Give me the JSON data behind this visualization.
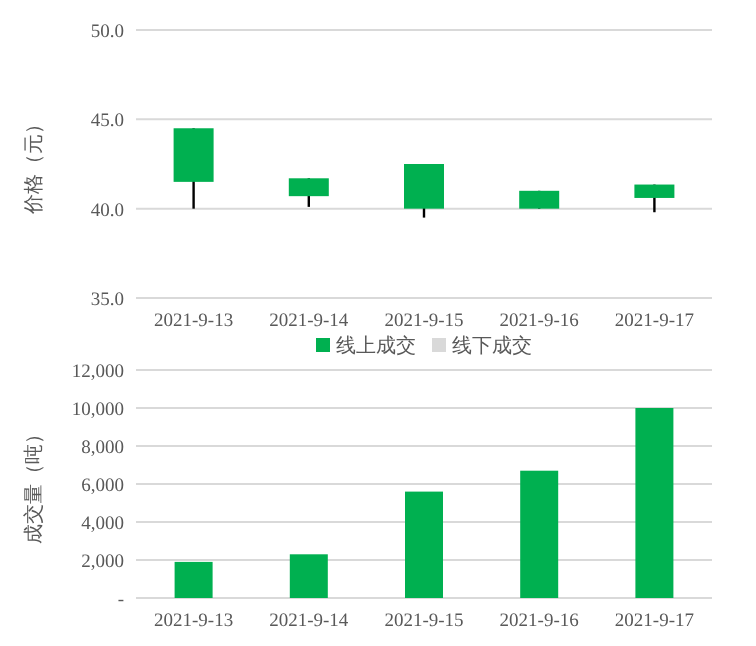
{
  "chart_data": [
    {
      "type": "candlestick",
      "ylabel": "价格（元）",
      "categories": [
        "2021-9-13",
        "2021-9-14",
        "2021-9-15",
        "2021-9-16",
        "2021-9-17"
      ],
      "ohlc": [
        [
          44.5,
          44.5,
          40.0,
          41.5
        ],
        [
          41.7,
          41.7,
          40.1,
          40.7
        ],
        [
          42.5,
          42.5,
          39.5,
          40.0
        ],
        [
          41.0,
          41.0,
          40.0,
          40.0
        ],
        [
          41.35,
          41.35,
          39.8,
          40.6
        ]
      ],
      "color": "#00b050",
      "ylim": [
        35,
        50
      ],
      "yticks": [
        {
          "value": 35,
          "label": "35.0"
        },
        {
          "value": 40,
          "label": "40.0"
        },
        {
          "value": 45,
          "label": "45.0"
        },
        {
          "value": 50,
          "label": "50.0"
        }
      ],
      "grid": "y"
    },
    {
      "type": "bar",
      "ylabel": "成交量（吨）",
      "categories": [
        "2021-9-13",
        "2021-9-14",
        "2021-9-15",
        "2021-9-16",
        "2021-9-17"
      ],
      "stacked": true,
      "series": [
        {
          "name": "线上成交",
          "color": "#00b050",
          "values": [
            1900,
            2300,
            5600,
            6700,
            10000
          ]
        },
        {
          "name": "线下成交",
          "color": "#d9d9d9",
          "values": [
            0,
            0,
            0,
            0,
            0
          ]
        }
      ],
      "ylim": [
        0,
        12000
      ],
      "yticks": [
        {
          "value": 0,
          "label": "-"
        },
        {
          "value": 2000,
          "label": "2,000"
        },
        {
          "value": 4000,
          "label": "4,000"
        },
        {
          "value": 6000,
          "label": "6,000"
        },
        {
          "value": 8000,
          "label": "8,000"
        },
        {
          "value": 10000,
          "label": "10,000"
        },
        {
          "value": 12000,
          "label": "12,000"
        }
      ],
      "grid": "y",
      "legend": "top"
    }
  ]
}
